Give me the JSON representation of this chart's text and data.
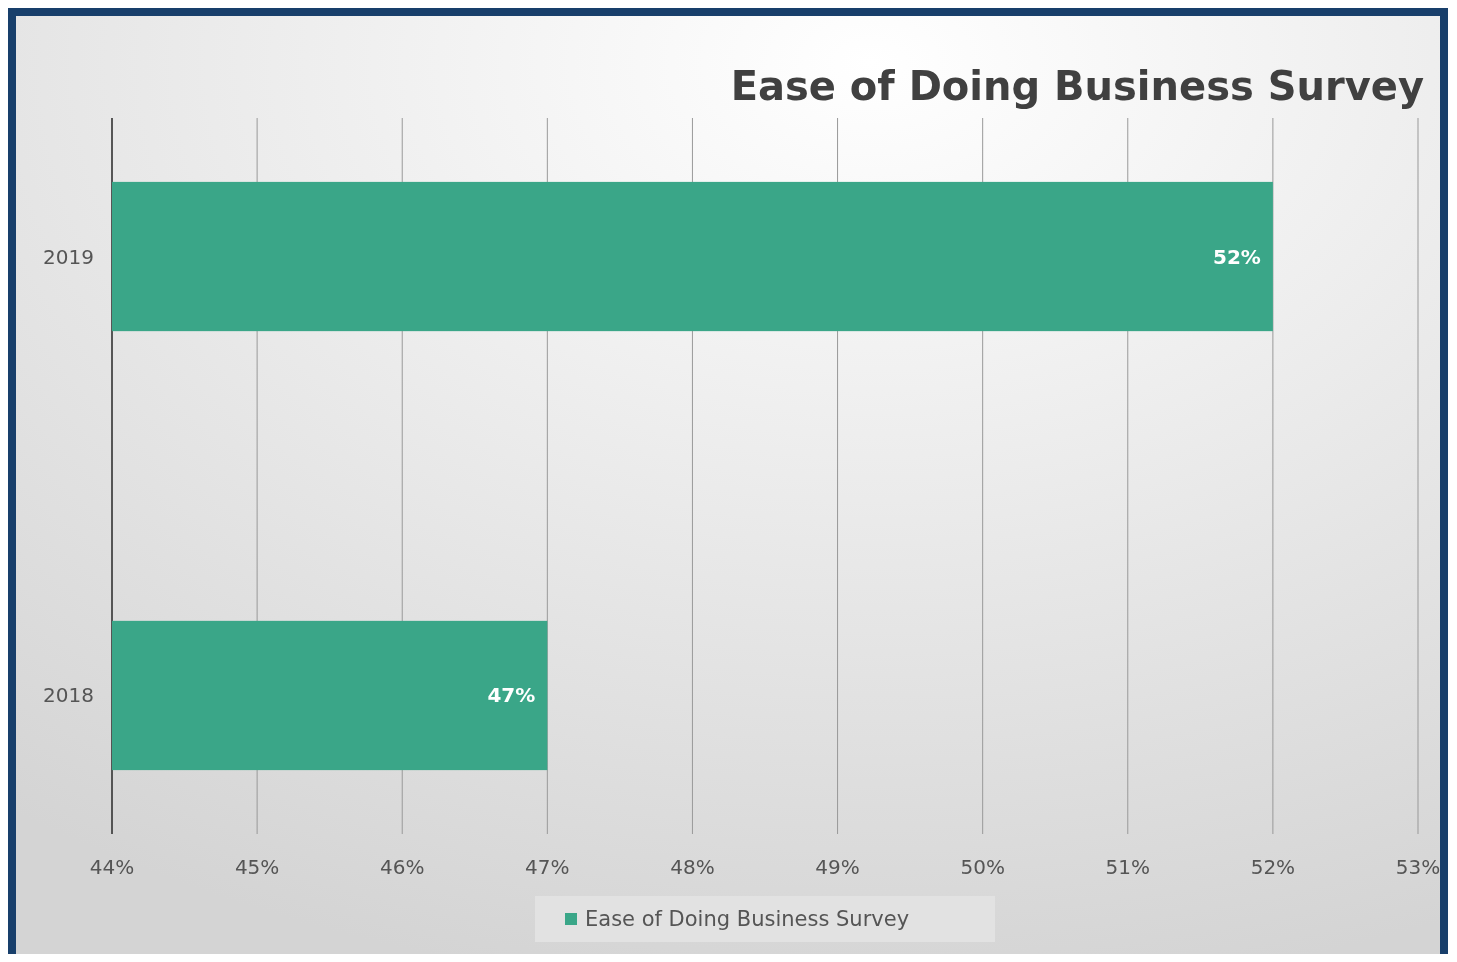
{
  "chart_data": {
    "type": "bar",
    "orientation": "horizontal",
    "title": "Ease of Doing Business Survey",
    "categories": [
      "2019",
      "2018"
    ],
    "series": [
      {
        "name": "Ease of Doing Business Survey",
        "color": "#3aa688",
        "values": [
          52,
          47
        ],
        "value_labels": [
          "52%",
          "47%"
        ]
      }
    ],
    "xlim": [
      44,
      53
    ],
    "xticks": [
      {
        "value": 44,
        "label": "44%"
      },
      {
        "value": 45,
        "label": "45%"
      },
      {
        "value": 46,
        "label": "46%"
      },
      {
        "value": 47,
        "label": "47%"
      },
      {
        "value": 48,
        "label": "48%"
      },
      {
        "value": 49,
        "label": "49%"
      },
      {
        "value": 50,
        "label": "50%"
      },
      {
        "value": 51,
        "label": "51%"
      },
      {
        "value": 52,
        "label": "52%"
      },
      {
        "value": 53,
        "label": "53%"
      }
    ],
    "grid": "x",
    "legend": "bottom"
  }
}
